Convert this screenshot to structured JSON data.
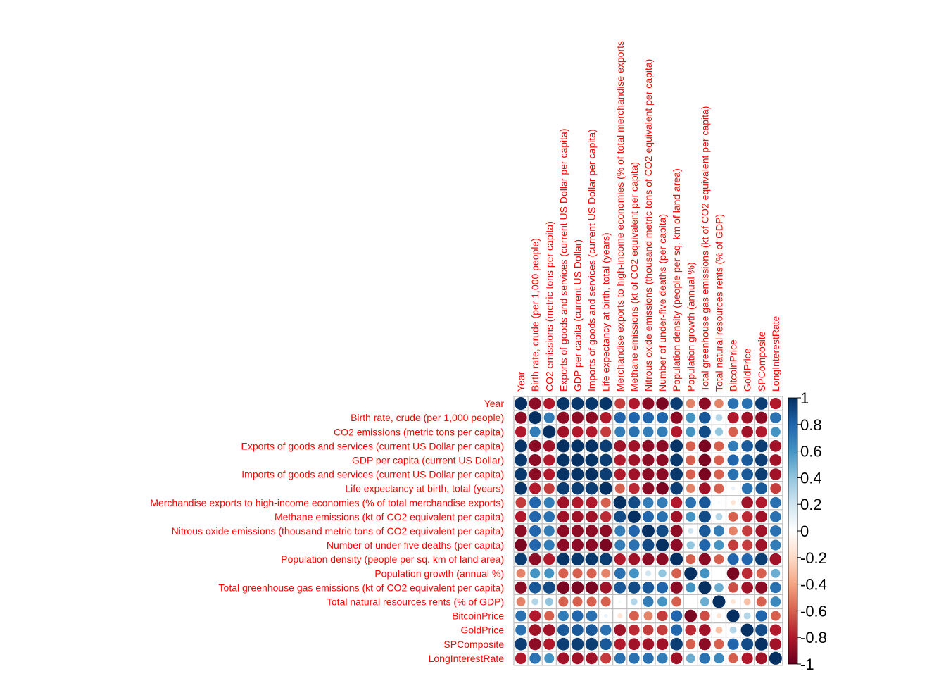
{
  "chart_data": {
    "type": "heatmap",
    "subtype": "correlation-matrix-circles",
    "variables": [
      "Year",
      "Birth rate, crude (per 1,000 people)",
      "CO2 emissions (metric tons per capita)",
      "Exports of goods and services (current US Dollar per capita)",
      "GDP per capita (current US Dollar)",
      "Imports of goods and services (current US Dollar per capita)",
      "Life expectancy at birth, total (years)",
      "Merchandise exports to high-income economies (% of total merchandise exports)",
      "Methane emissions (kt of CO2 equivalent per capita)",
      "Nitrous oxide emissions (thousand metric tons of CO2 equivalent per capita)",
      "Number of under-five deaths (per capita)",
      "Population density (people per sq. km of land area)",
      "Population growth (annual %)",
      "Total greenhouse gas emissions (kt of CO2 equivalent per capita)",
      "Total natural resources rents (% of GDP)",
      "BitcoinPrice",
      "GoldPrice",
      "SPComposite",
      "LongInterestRate"
    ],
    "column_labels": [
      "Year",
      "Birth rate, crude (per 1,000 people)",
      "CO2 emissions (metric tons per capita)",
      "Exports of goods and services (current US Dollar per capita)",
      "GDP per capita (current US Dollar)",
      "Imports of goods and services (current US Dollar per capita)",
      "Life expectancy at birth, total (years)",
      "Merchandise exports to high-income economies (% of total merchandise exports",
      "Methane emissions (kt of CO2 equivalent per capita)",
      "Nitrous oxide emissions (thousand metric tons of CO2 equivalent per capita)",
      "Number of under-five deaths (per capita)",
      "Population density (people per sq. km of land area)",
      "Population growth (annual %)",
      "Total greenhouse gas emissions (kt of CO2 equivalent per capita)",
      "Total natural resources rents (% of GDP)",
      "BitcoinPrice",
      "GoldPrice",
      "SPComposite",
      "LongInterestRate"
    ],
    "matrix": [
      [
        1.0,
        -0.9,
        -0.8,
        0.98,
        0.97,
        0.97,
        0.98,
        -0.7,
        -0.8,
        -0.9,
        -0.95,
        0.95,
        -0.5,
        -0.9,
        -0.5,
        0.75,
        0.75,
        0.95,
        -0.8
      ],
      [
        -0.9,
        1.0,
        0.7,
        -0.9,
        -0.9,
        -0.9,
        -0.8,
        0.8,
        0.8,
        0.8,
        0.8,
        -0.9,
        0.6,
        0.85,
        0.3,
        -0.8,
        -0.85,
        -0.9,
        0.75
      ],
      [
        -0.8,
        0.7,
        1.0,
        -0.85,
        -0.8,
        -0.8,
        -0.7,
        0.7,
        0.75,
        0.7,
        0.7,
        -0.8,
        0.6,
        0.9,
        0.4,
        -0.6,
        -0.85,
        -0.8,
        0.6
      ],
      [
        0.98,
        -0.9,
        -0.85,
        1.0,
        0.99,
        0.99,
        0.95,
        -0.85,
        -0.85,
        -0.9,
        -0.9,
        0.98,
        -0.6,
        -0.95,
        -0.6,
        0.7,
        0.85,
        0.95,
        -0.85
      ],
      [
        0.97,
        -0.9,
        -0.8,
        0.99,
        1.0,
        0.99,
        0.95,
        -0.8,
        -0.85,
        -0.9,
        -0.9,
        0.97,
        -0.6,
        -0.95,
        -0.6,
        0.8,
        0.85,
        0.95,
        -0.85
      ],
      [
        0.97,
        -0.9,
        -0.8,
        0.99,
        0.99,
        1.0,
        0.95,
        -0.8,
        -0.85,
        -0.9,
        -0.9,
        0.97,
        -0.6,
        -0.95,
        -0.6,
        0.75,
        0.85,
        0.95,
        -0.85
      ],
      [
        0.98,
        -0.8,
        -0.7,
        0.95,
        0.95,
        0.95,
        1.0,
        -0.6,
        -0.75,
        -0.9,
        -0.95,
        0.95,
        -0.5,
        -0.85,
        -0.6,
        0.1,
        0.75,
        0.85,
        -0.7
      ],
      [
        -0.7,
        0.8,
        0.7,
        -0.85,
        -0.8,
        -0.8,
        -0.6,
        1.0,
        0.9,
        0.7,
        0.7,
        -0.8,
        0.75,
        0.85,
        0.05,
        -0.15,
        -0.85,
        -0.8,
        0.75
      ],
      [
        -0.8,
        0.8,
        0.75,
        -0.85,
        -0.85,
        -0.85,
        -0.75,
        0.9,
        1.0,
        0.8,
        0.75,
        -0.85,
        0.6,
        0.9,
        0.3,
        -0.6,
        -0.75,
        -0.85,
        0.75
      ],
      [
        -0.9,
        0.8,
        0.7,
        -0.9,
        -0.9,
        -0.9,
        -0.9,
        0.7,
        0.8,
        1.0,
        0.9,
        -0.9,
        0.2,
        0.85,
        0.7,
        -0.5,
        -0.7,
        -0.85,
        0.75
      ],
      [
        -0.95,
        0.8,
        0.7,
        -0.9,
        -0.9,
        -0.9,
        -0.95,
        0.7,
        0.75,
        0.9,
        1.0,
        -0.9,
        0.4,
        0.8,
        0.6,
        -0.7,
        -0.7,
        -0.85,
        0.7
      ],
      [
        0.95,
        -0.9,
        -0.8,
        0.98,
        0.97,
        0.97,
        0.95,
        -0.8,
        -0.85,
        -0.9,
        -0.9,
        1.0,
        -0.6,
        -0.9,
        -0.6,
        0.8,
        0.8,
        0.95,
        -0.85
      ],
      [
        -0.5,
        0.6,
        0.6,
        -0.6,
        -0.6,
        -0.6,
        -0.5,
        0.75,
        0.6,
        0.2,
        0.4,
        -0.6,
        1.0,
        0.6,
        0.0,
        -0.95,
        -0.75,
        -0.6,
        0.5
      ],
      [
        -0.9,
        0.85,
        0.9,
        -0.95,
        -0.95,
        -0.95,
        -0.85,
        0.85,
        0.9,
        0.85,
        0.8,
        -0.9,
        0.6,
        1.0,
        0.5,
        -0.65,
        -0.85,
        -0.9,
        0.75
      ],
      [
        -0.5,
        0.3,
        0.4,
        -0.6,
        -0.6,
        -0.6,
        -0.6,
        0.05,
        0.3,
        0.7,
        0.6,
        -0.6,
        0.0,
        0.5,
        1.0,
        -0.15,
        -0.3,
        -0.6,
        0.65
      ],
      [
        0.75,
        -0.8,
        -0.6,
        0.7,
        0.8,
        0.75,
        0.1,
        -0.15,
        -0.6,
        -0.5,
        -0.7,
        0.8,
        -0.95,
        -0.65,
        -0.15,
        1.0,
        0.3,
        0.8,
        -0.6
      ],
      [
        0.75,
        -0.85,
        -0.85,
        0.85,
        0.85,
        0.85,
        0.75,
        -0.85,
        -0.75,
        -0.7,
        -0.7,
        0.8,
        -0.75,
        -0.85,
        -0.3,
        0.3,
        1.0,
        0.9,
        -0.8
      ],
      [
        0.95,
        -0.9,
        -0.8,
        0.95,
        0.95,
        0.95,
        0.85,
        -0.8,
        -0.85,
        -0.85,
        -0.85,
        0.95,
        -0.6,
        -0.9,
        -0.6,
        0.8,
        0.9,
        1.0,
        -0.85
      ],
      [
        -0.8,
        0.75,
        0.6,
        -0.85,
        -0.85,
        -0.85,
        -0.7,
        0.75,
        0.75,
        0.75,
        0.7,
        -0.85,
        0.5,
        0.75,
        0.65,
        -0.6,
        -0.8,
        -0.85,
        1.0
      ]
    ],
    "color_scale": {
      "range": [
        -1,
        1
      ],
      "ticks": [
        1,
        0.8,
        0.6,
        0.4,
        0.2,
        0,
        -0.2,
        -0.4,
        -0.6,
        -0.8,
        -1
      ],
      "tick_labels": [
        "1",
        "0.8",
        "0.6",
        "0.4",
        "0.2",
        "0",
        "-0.2",
        "-0.4",
        "-0.6",
        "-0.8",
        "-1"
      ],
      "colors": [
        "#67001F",
        "#B2182B",
        "#D6604D",
        "#F4A582",
        "#FDDBC7",
        "#FFFFFF",
        "#D1E5F0",
        "#92C5DE",
        "#4393C3",
        "#2166AC",
        "#053061"
      ]
    },
    "label_color": "#FF0000",
    "grid_color": "#BEBEBE",
    "legend_placement": "right"
  }
}
